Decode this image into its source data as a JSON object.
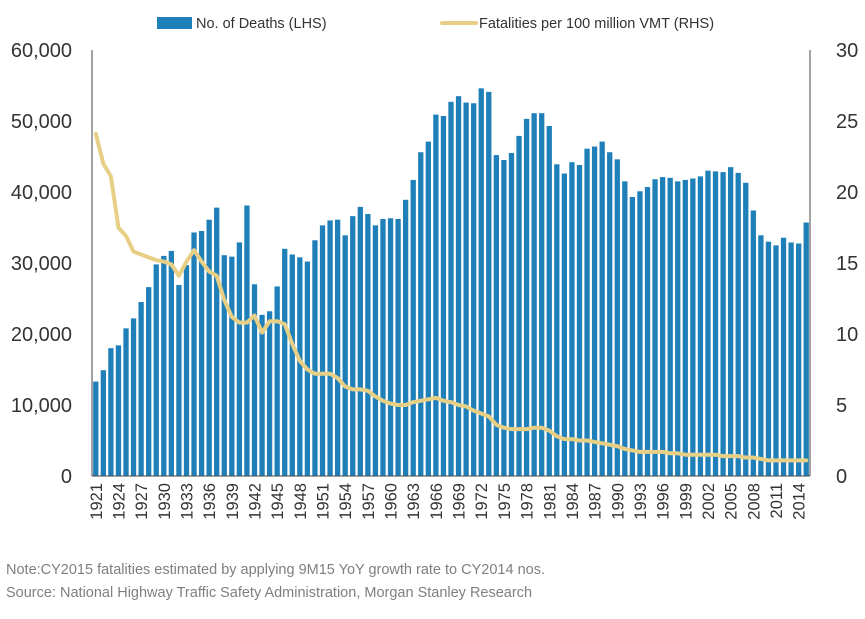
{
  "chart_data": {
    "type": "bar",
    "legend": {
      "position": "top",
      "items": [
        {
          "label": "No. of Deaths (LHS)",
          "kind": "bar"
        },
        {
          "label": "Fatalities per 100 million VMT (RHS)",
          "kind": "line"
        }
      ]
    },
    "colors": {
      "bar": "#1f7fb8",
      "line": "#e8cf86",
      "axis": "#444444",
      "text": "#333333",
      "note": "#7f7f7f"
    },
    "x": [
      1921,
      1922,
      1923,
      1924,
      1925,
      1926,
      1927,
      1928,
      1929,
      1930,
      1931,
      1932,
      1933,
      1934,
      1935,
      1936,
      1937,
      1938,
      1939,
      1940,
      1941,
      1942,
      1943,
      1944,
      1945,
      1946,
      1947,
      1948,
      1949,
      1950,
      1951,
      1952,
      1953,
      1954,
      1955,
      1956,
      1957,
      1958,
      1959,
      1960,
      1961,
      1962,
      1963,
      1964,
      1965,
      1966,
      1967,
      1968,
      1969,
      1970,
      1971,
      1972,
      1973,
      1974,
      1975,
      1976,
      1977,
      1978,
      1979,
      1980,
      1981,
      1982,
      1983,
      1984,
      1985,
      1986,
      1987,
      1988,
      1989,
      1990,
      1991,
      1992,
      1993,
      1994,
      1995,
      1996,
      1997,
      1998,
      1999,
      2000,
      2001,
      2002,
      2003,
      2004,
      2005,
      2006,
      2007,
      2008,
      2009,
      2010,
      2011,
      2012,
      2013,
      2014,
      2015
    ],
    "x_tick_labels": [
      "1921",
      "1924",
      "1927",
      "1930",
      "1933",
      "1936",
      "1939",
      "1942",
      "1945",
      "1948",
      "1951",
      "1954",
      "1957",
      "1960",
      "1963",
      "1966",
      "1969",
      "1972",
      "1975",
      "1978",
      "1981",
      "1984",
      "1987",
      "1990",
      "1993",
      "1996",
      "1999",
      "2002",
      "2005",
      "2008",
      "2011",
      "2014"
    ],
    "series": [
      {
        "name": "No. of Deaths (LHS)",
        "type": "bar",
        "axis": "left",
        "values": [
          13300,
          14900,
          18000,
          18400,
          20800,
          22200,
          24500,
          26600,
          29800,
          31000,
          31700,
          26900,
          29700,
          34300,
          34500,
          36100,
          37800,
          31100,
          30900,
          32900,
          38100,
          27000,
          22700,
          23200,
          26700,
          32000,
          31200,
          30800,
          30200,
          33200,
          35300,
          36000,
          36100,
          33900,
          36600,
          37900,
          36900,
          35300,
          36200,
          36300,
          36200,
          38900,
          41700,
          45600,
          47100,
          50900,
          50700,
          52700,
          53500,
          52600,
          52500,
          54600,
          54100,
          45200,
          44500,
          45500,
          47900,
          50300,
          51100,
          51100,
          49300,
          43900,
          42600,
          44200,
          43800,
          46100,
          46400,
          47100,
          45600,
          44600,
          41500,
          39300,
          40100,
          40700,
          41800,
          42100,
          42000,
          41500,
          41700,
          41900,
          42200,
          43000,
          42900,
          42800,
          43500,
          42700,
          41300,
          37400,
          33900,
          32999,
          32479,
          33561,
          32894,
          32744,
          35700
        ]
      },
      {
        "name": "Fatalities per 100 million VMT (RHS)",
        "type": "line",
        "axis": "right",
        "values": [
          24.1,
          22.0,
          21.1,
          17.5,
          16.9,
          15.8,
          15.6,
          15.4,
          15.2,
          15.1,
          14.9,
          14.1,
          15.1,
          15.9,
          15.1,
          14.4,
          14.1,
          12.4,
          11.2,
          10.8,
          10.8,
          11.3,
          10.1,
          10.9,
          10.9,
          10.7,
          9.3,
          8.1,
          7.5,
          7.2,
          7.2,
          7.2,
          6.9,
          6.3,
          6.1,
          6.1,
          6.0,
          5.6,
          5.3,
          5.1,
          5.0,
          5.0,
          5.2,
          5.3,
          5.4,
          5.5,
          5.3,
          5.2,
          5.0,
          4.9,
          4.6,
          4.4,
          4.2,
          3.6,
          3.4,
          3.3,
          3.3,
          3.3,
          3.4,
          3.4,
          3.2,
          2.8,
          2.6,
          2.6,
          2.5,
          2.5,
          2.4,
          2.3,
          2.2,
          2.1,
          1.9,
          1.8,
          1.7,
          1.7,
          1.7,
          1.7,
          1.6,
          1.6,
          1.5,
          1.5,
          1.5,
          1.5,
          1.5,
          1.4,
          1.4,
          1.4,
          1.3,
          1.3,
          1.2,
          1.1,
          1.1,
          1.1,
          1.1,
          1.1,
          1.1
        ]
      }
    ],
    "y_left": {
      "min": 0,
      "max": 60000,
      "ticks": [
        "0",
        "10,000",
        "20,000",
        "30,000",
        "40,000",
        "50,000",
        "60,000"
      ]
    },
    "y_right": {
      "min": 0,
      "max": 30,
      "ticks": [
        "0",
        "5",
        "10",
        "15",
        "20",
        "25",
        "30"
      ]
    },
    "grid": false
  },
  "notes": {
    "line1": "Note:CY2015 fatalities estimated by applying 9M15 YoY growth rate to CY2014 nos.",
    "line2": "Source: National Highway Traffic Safety Administration, Morgan Stanley Research"
  }
}
